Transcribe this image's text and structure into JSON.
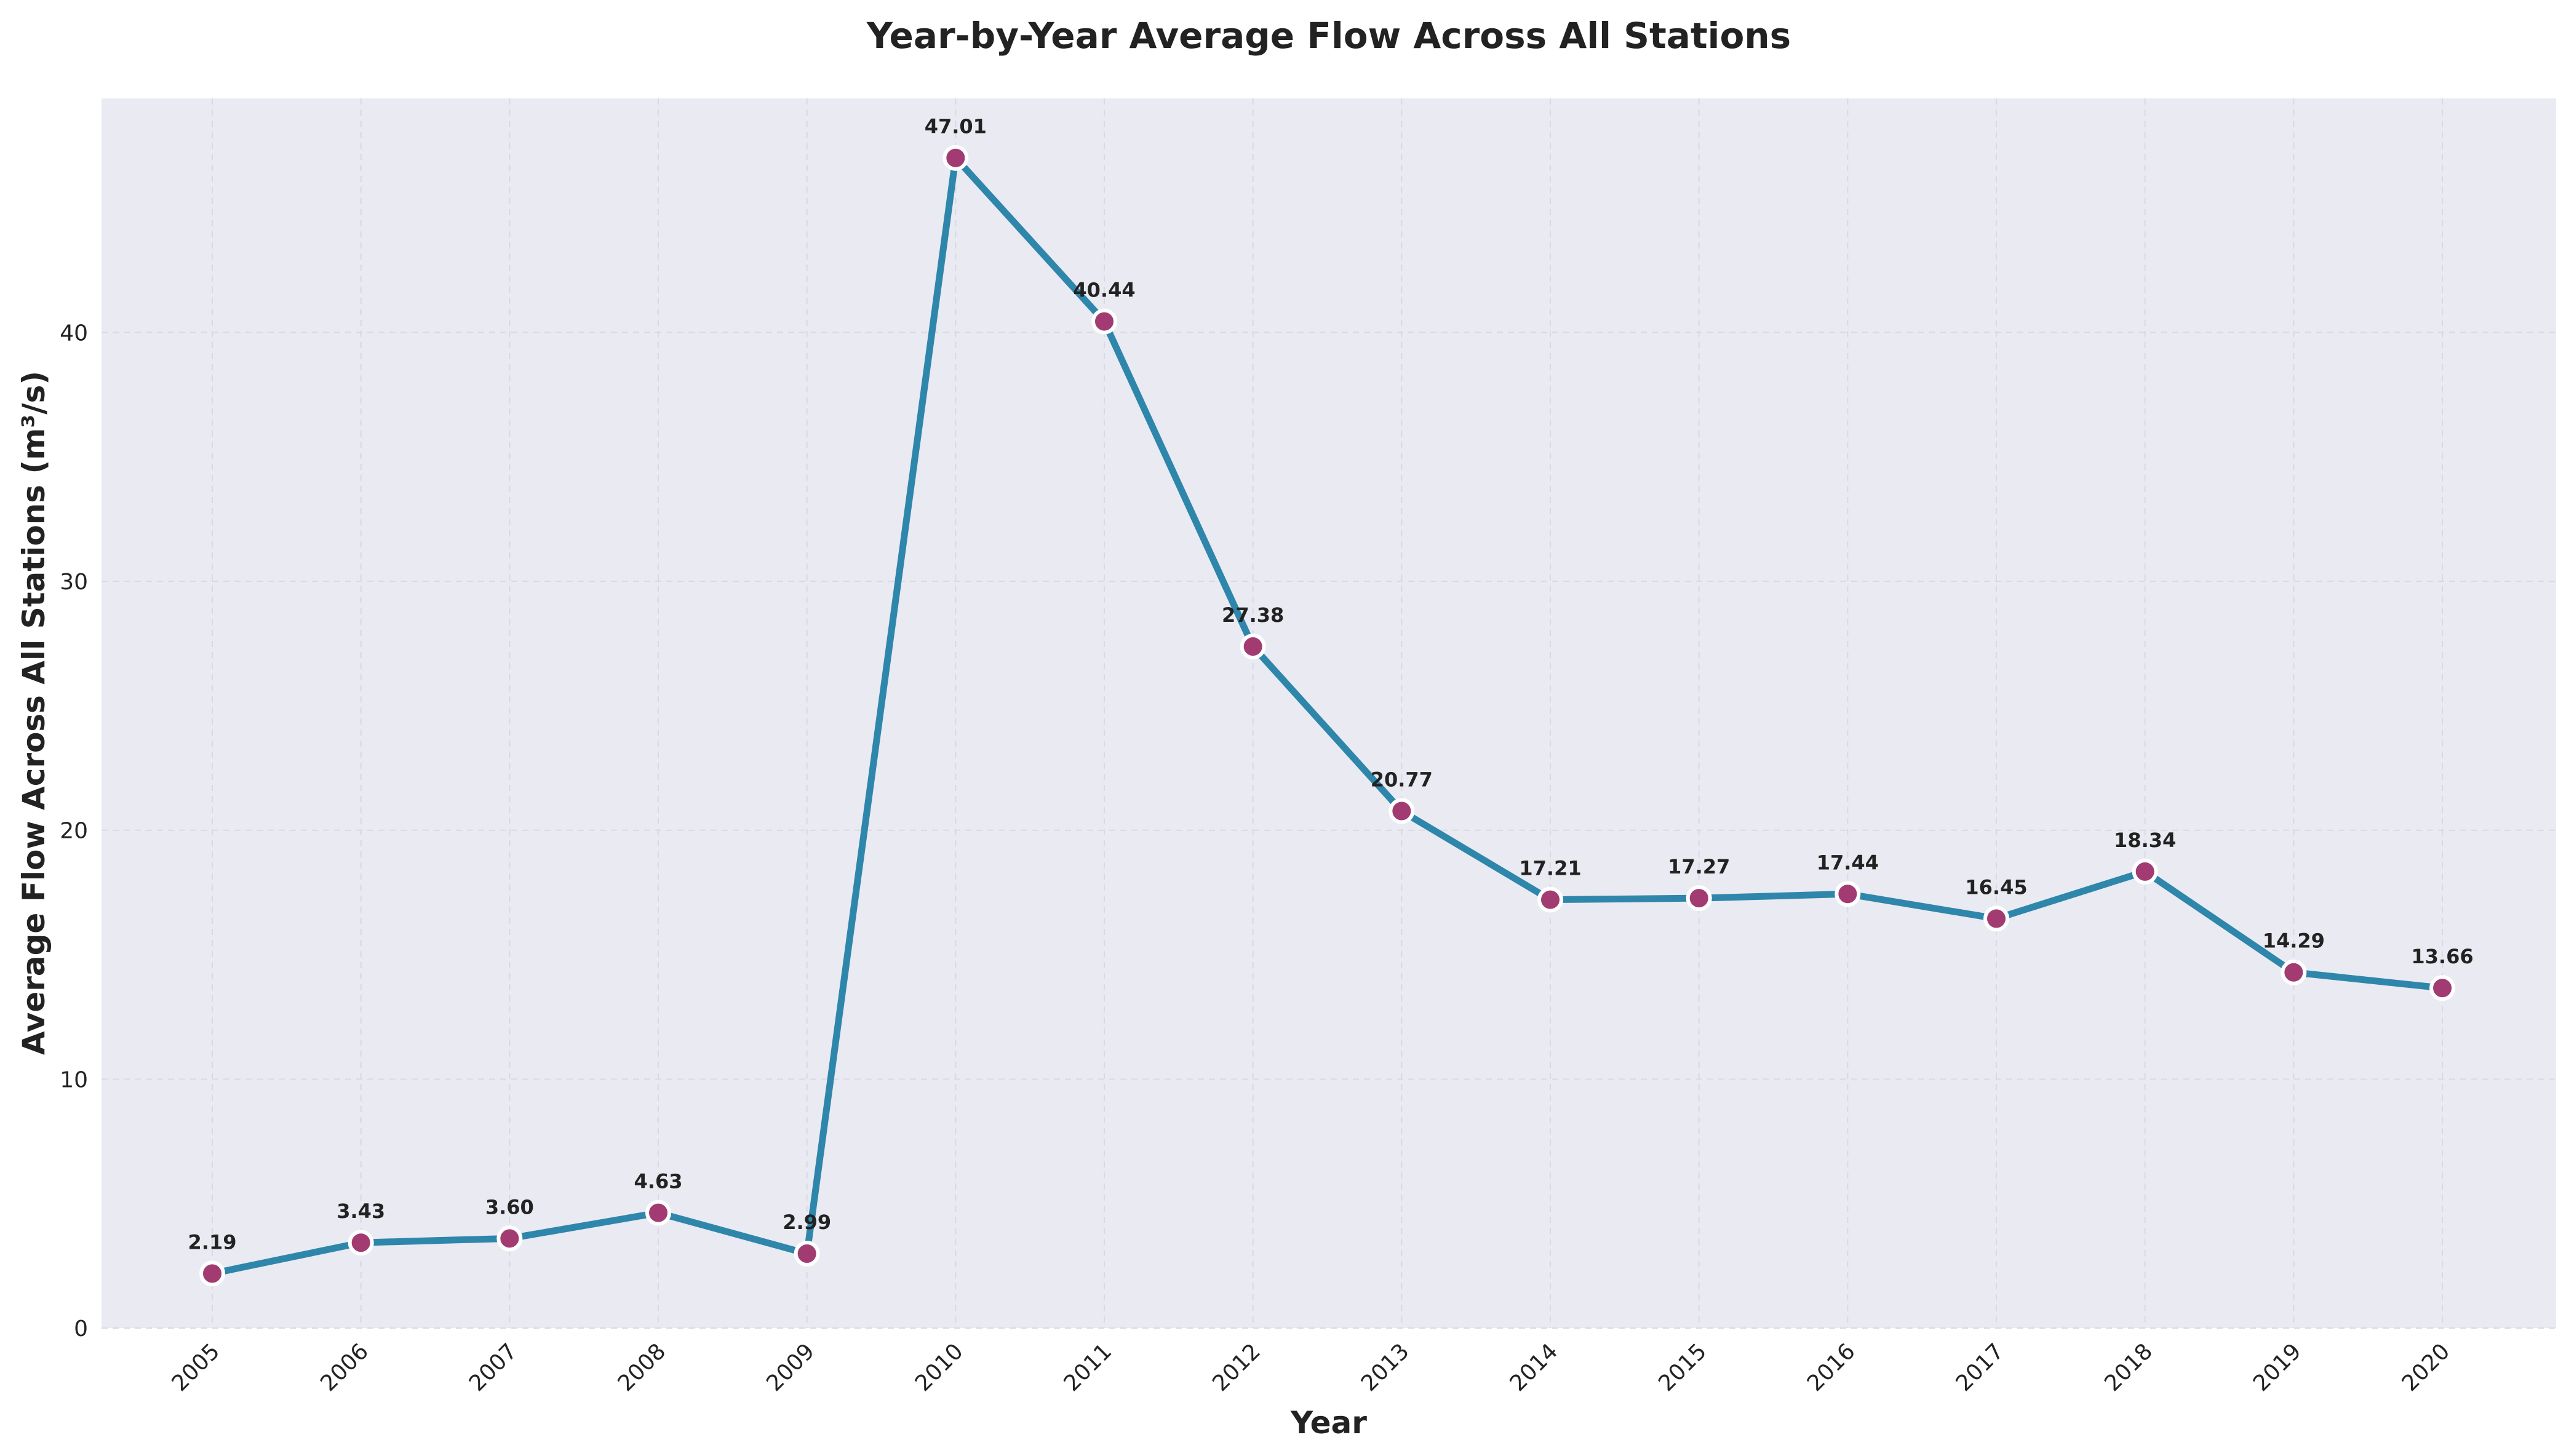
{
  "chart_data": {
    "type": "line",
    "title": "Year-by-Year Average Flow Across All Stations",
    "xlabel": "Year",
    "ylabel": "Average Flow Across All Stations (m³/s)",
    "x": [
      "2005",
      "2006",
      "2007",
      "2008",
      "2009",
      "2010",
      "2011",
      "2012",
      "2013",
      "2014",
      "2015",
      "2016",
      "2017",
      "2018",
      "2019",
      "2020"
    ],
    "series": [
      {
        "values": [
          2.19,
          3.43,
          3.6,
          4.63,
          2.99,
          47.01,
          40.44,
          27.38,
          20.77,
          17.21,
          17.27,
          17.44,
          16.45,
          18.34,
          14.29,
          13.66
        ]
      }
    ],
    "data_labels": [
      "2.19",
      "3.43",
      "3.60",
      "4.63",
      "2.99",
      "47.01",
      "40.44",
      "27.38",
      "20.77",
      "17.21",
      "17.27",
      "17.44",
      "16.45",
      "18.34",
      "14.29",
      "13.66"
    ],
    "yticks": [
      0,
      10,
      20,
      30,
      40
    ],
    "ylim": [
      0,
      49.4
    ],
    "grid": true,
    "legend": "none",
    "colors": {
      "line": "#2E86AB",
      "marker_fill": "#A23B72",
      "marker_edge": "#ffffff",
      "plot_background": "#EAEAF2",
      "grid": "#D9D9E3"
    }
  }
}
